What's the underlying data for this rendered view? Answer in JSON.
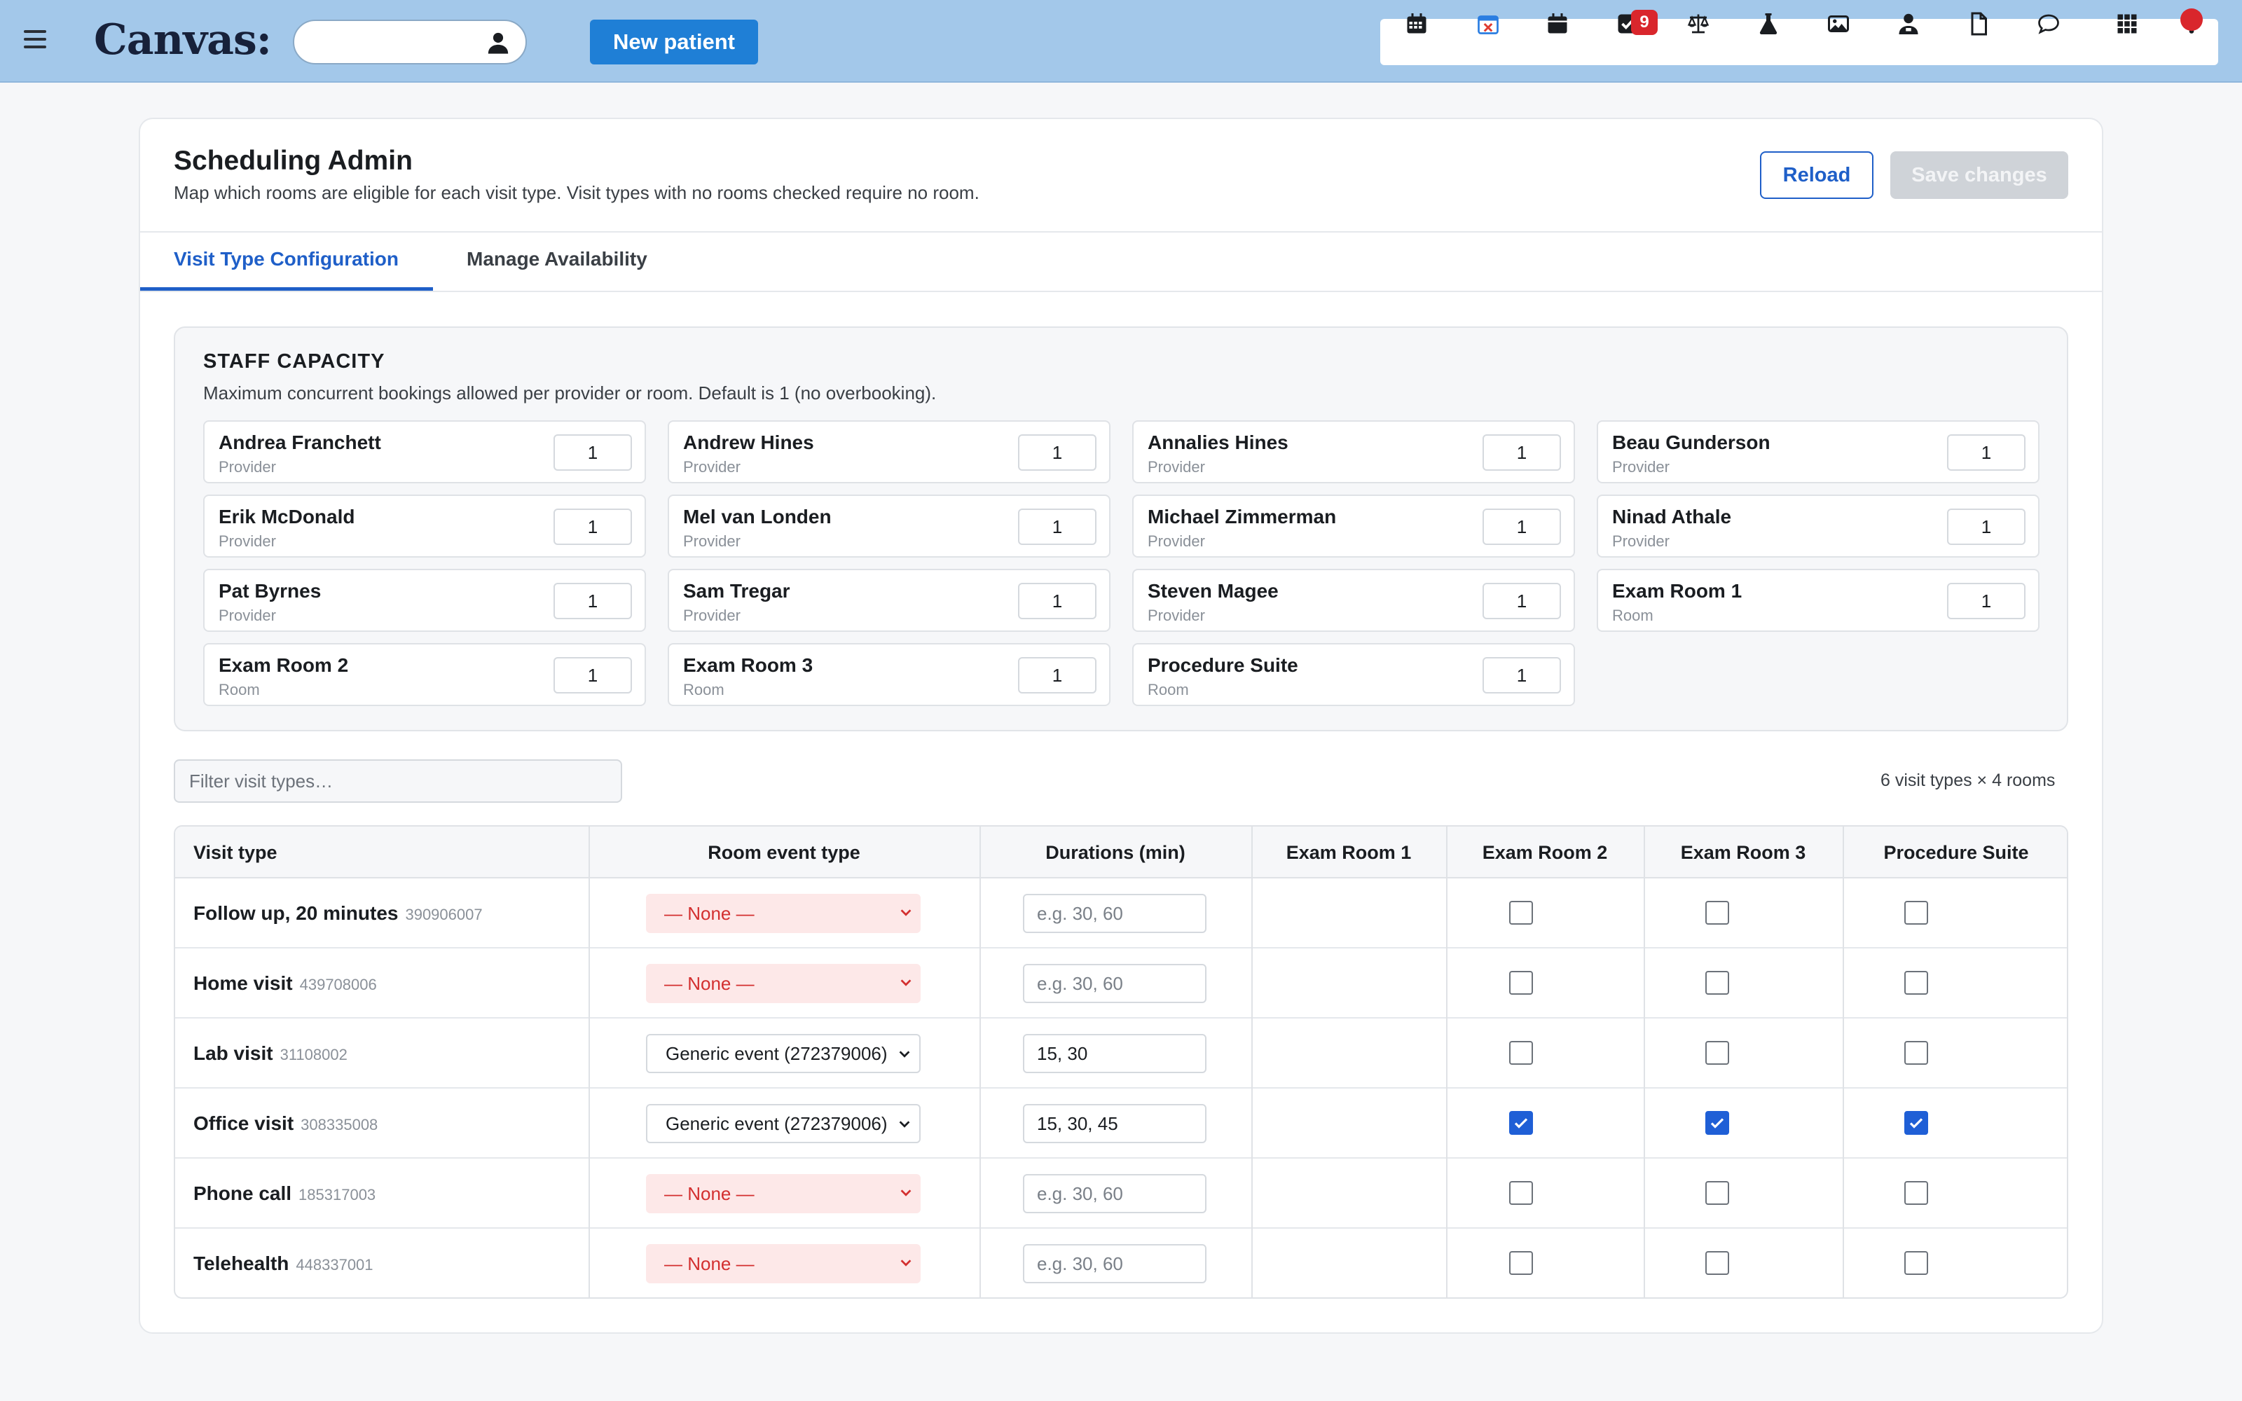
{
  "app": {
    "logo": "Canvas:",
    "new_patient_label": "New patient",
    "notification_count": "9",
    "toolbar_icons": [
      "calendar-grid-icon",
      "calendar-cancel-icon",
      "calendar-icon",
      "tasks-check-icon",
      "scales-icon",
      "lab-flask-icon",
      "image-icon",
      "staff-icon",
      "document-icon",
      "chat-icon",
      "apps-grid-icon",
      "more-icon"
    ]
  },
  "page": {
    "title": "Scheduling Admin",
    "subtitle": "Map which rooms are eligible for each visit type. Visit types with no rooms checked require no room.",
    "reload_label": "Reload",
    "save_label": "Save changes"
  },
  "tabs": [
    {
      "label": "Visit Type Configuration",
      "active": true
    },
    {
      "label": "Manage Availability",
      "active": false
    }
  ],
  "capacity": {
    "title": "STAFF CAPACITY",
    "subtitle": "Maximum concurrent bookings allowed per provider or room. Default is 1 (no overbooking).",
    "staff": [
      {
        "name": "Andrea Franchett",
        "role": "Provider",
        "value": "1"
      },
      {
        "name": "Andrew Hines",
        "role": "Provider",
        "value": "1"
      },
      {
        "name": "Annalies Hines",
        "role": "Provider",
        "value": "1"
      },
      {
        "name": "Beau Gunderson",
        "role": "Provider",
        "value": "1"
      },
      {
        "name": "Erik McDonald",
        "role": "Provider",
        "value": "1"
      },
      {
        "name": "Mel van Londen",
        "role": "Provider",
        "value": "1"
      },
      {
        "name": "Michael Zimmerman",
        "role": "Provider",
        "value": "1"
      },
      {
        "name": "Ninad Athale",
        "role": "Provider",
        "value": "1"
      },
      {
        "name": "Pat Byrnes",
        "role": "Provider",
        "value": "1"
      },
      {
        "name": "Sam Tregar",
        "role": "Provider",
        "value": "1"
      },
      {
        "name": "Steven Magee",
        "role": "Provider",
        "value": "1"
      },
      {
        "name": "Exam Room 1",
        "role": "Room",
        "value": "1"
      },
      {
        "name": "Exam Room 2",
        "role": "Room",
        "value": "1"
      },
      {
        "name": "Exam Room 3",
        "role": "Room",
        "value": "1"
      },
      {
        "name": "Procedure Suite",
        "role": "Room",
        "value": "1"
      }
    ]
  },
  "filter": {
    "placeholder": "Filter visit types…",
    "value": ""
  },
  "summary": "6 visit types × 4 rooms",
  "table": {
    "headers": [
      "Visit type",
      "Room event type",
      "Durations (min)",
      "Exam Room 1",
      "Exam Room 2",
      "Exam Room 3",
      "Procedure Suite"
    ],
    "duration_placeholder": "e.g. 30, 60",
    "rows": [
      {
        "name": "Follow up, 20 minutes",
        "code": "390906007",
        "event": "— None —",
        "event_kind": "none",
        "durations": "",
        "rooms": [
          false,
          false,
          false,
          false
        ]
      },
      {
        "name": "Home visit",
        "code": "439708006",
        "event": "— None —",
        "event_kind": "none",
        "durations": "",
        "rooms": [
          false,
          false,
          false,
          false
        ]
      },
      {
        "name": "Lab visit",
        "code": "31108002",
        "event": "Generic event (272379006)",
        "event_kind": "generic",
        "durations": "15, 30",
        "rooms": [
          false,
          false,
          false,
          true
        ]
      },
      {
        "name": "Office visit",
        "code": "308335008",
        "event": "Generic event (272379006)",
        "event_kind": "generic",
        "durations": "15, 30, 45",
        "rooms": [
          true,
          true,
          true,
          false
        ]
      },
      {
        "name": "Phone call",
        "code": "185317003",
        "event": "— None —",
        "event_kind": "none",
        "durations": "",
        "rooms": [
          false,
          false,
          false,
          false
        ]
      },
      {
        "name": "Telehealth",
        "code": "448337001",
        "event": "— None —",
        "event_kind": "none",
        "durations": "",
        "rooms": [
          false,
          false,
          false,
          false
        ]
      }
    ]
  }
}
